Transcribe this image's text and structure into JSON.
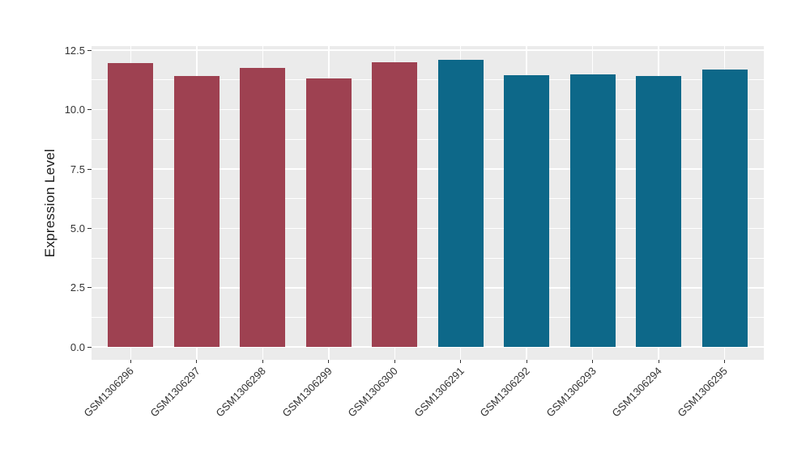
{
  "chart_data": {
    "type": "bar",
    "title": "",
    "xlabel": "",
    "ylabel": "Expression Level",
    "categories": [
      "GSM1306296",
      "GSM1306297",
      "GSM1306298",
      "GSM1306299",
      "GSM1306300",
      "GSM1306291",
      "GSM1306292",
      "GSM1306293",
      "GSM1306294",
      "GSM1306295"
    ],
    "values": [
      11.95,
      11.4,
      11.75,
      11.3,
      12.0,
      12.1,
      11.45,
      11.5,
      11.4,
      11.7
    ],
    "bar_colors": [
      "#9E4151",
      "#9E4151",
      "#9E4151",
      "#9E4151",
      "#9E4151",
      "#0D6889",
      "#0D6889",
      "#0D6889",
      "#0D6889",
      "#0D6889"
    ],
    "palette": {
      "maroon": "#9E4151",
      "teal": "#0D6889"
    },
    "yticks": [
      0.0,
      2.5,
      5.0,
      7.5,
      10.0,
      12.5
    ],
    "ytick_labels": [
      "0.0",
      "2.5",
      "5.0",
      "7.5",
      "10.0",
      "12.5"
    ],
    "minor_yticks": [
      1.25,
      3.75,
      6.25,
      8.75,
      11.25
    ],
    "ylim": [
      -0.535,
      12.676
    ],
    "grid": true,
    "legend": "none",
    "background": "#FFFFFF",
    "panel_background": "#EBEBEB",
    "grid_color": "#FFFFFF",
    "axis": {
      "tick_color": "#333333",
      "label_color": "#333333",
      "title_color": "#1a1a1a"
    }
  }
}
